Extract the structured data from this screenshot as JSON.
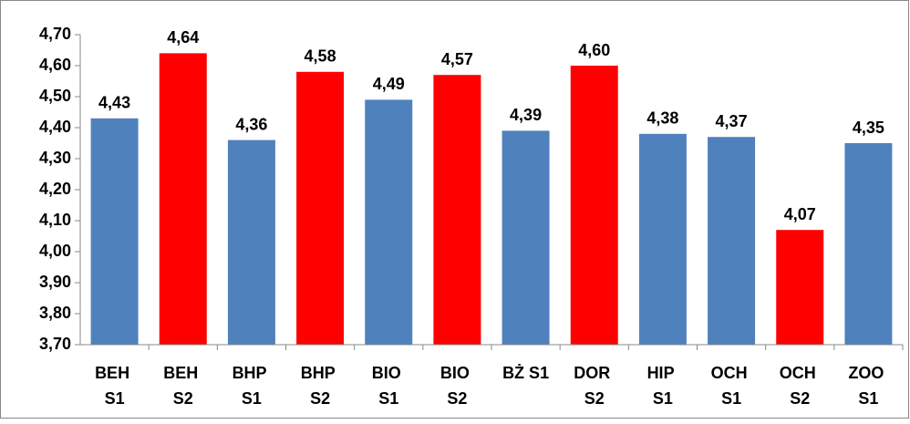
{
  "chart_data": {
    "type": "bar",
    "categories": [
      "BEH S1",
      "BEH S2",
      "BHP S1",
      "BHP S2",
      "BIO S1",
      "BIO S2",
      "BŻ S1",
      "DOR S2",
      "HIP S1",
      "OCH S1",
      "OCH S2",
      "ZOO S1"
    ],
    "values": [
      4.43,
      4.64,
      4.36,
      4.58,
      4.49,
      4.57,
      4.39,
      4.6,
      4.38,
      4.37,
      4.07,
      4.35
    ],
    "value_labels": [
      "4,43",
      "4,64",
      "4,36",
      "4,58",
      "4,49",
      "4,57",
      "4,39",
      "4,60",
      "4,38",
      "4,37",
      "4,07",
      "4,35"
    ],
    "colors": [
      "#4f81bd",
      "#ff0000",
      "#4f81bd",
      "#ff0000",
      "#4f81bd",
      "#ff0000",
      "#4f81bd",
      "#ff0000",
      "#4f81bd",
      "#4f81bd",
      "#ff0000",
      "#4f81bd"
    ],
    "ylim": [
      3.7,
      4.7
    ],
    "yticks": [
      {
        "value": 3.7,
        "label": "3,70"
      },
      {
        "value": 3.8,
        "label": "3,80"
      },
      {
        "value": 3.9,
        "label": "3,90"
      },
      {
        "value": 4.0,
        "label": "4,00"
      },
      {
        "value": 4.1,
        "label": "4,10"
      },
      {
        "value": 4.2,
        "label": "4,20"
      },
      {
        "value": 4.3,
        "label": "4,30"
      },
      {
        "value": 4.4,
        "label": "4,40"
      },
      {
        "value": 4.5,
        "label": "4,50"
      },
      {
        "value": 4.6,
        "label": "4,60"
      },
      {
        "value": 4.7,
        "label": "4,70"
      }
    ],
    "grid": false
  }
}
